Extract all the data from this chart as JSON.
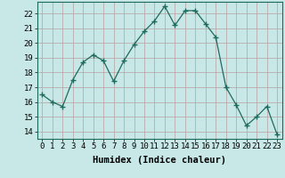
{
  "x": [
    0,
    1,
    2,
    3,
    4,
    5,
    6,
    7,
    8,
    9,
    10,
    11,
    12,
    13,
    14,
    15,
    16,
    17,
    18,
    19,
    20,
    21,
    22,
    23
  ],
  "y": [
    16.5,
    16.0,
    15.7,
    17.5,
    18.7,
    19.2,
    18.8,
    17.4,
    18.8,
    19.9,
    20.8,
    21.5,
    22.5,
    21.2,
    22.2,
    22.2,
    21.3,
    20.4,
    17.0,
    15.8,
    14.4,
    15.0,
    15.7,
    13.8
  ],
  "line_color": "#1e6b5e",
  "marker": "+",
  "marker_size": 4,
  "bg_color": "#c8e8e8",
  "grid_color": "#b8a0a0",
  "xlabel": "Humidex (Indice chaleur)",
  "ylabel_ticks": [
    14,
    15,
    16,
    17,
    18,
    19,
    20,
    21,
    22
  ],
  "ylim": [
    13.5,
    22.8
  ],
  "xlim": [
    -0.5,
    23.5
  ],
  "xticks": [
    0,
    1,
    2,
    3,
    4,
    5,
    6,
    7,
    8,
    9,
    10,
    11,
    12,
    13,
    14,
    15,
    16,
    17,
    18,
    19,
    20,
    21,
    22,
    23
  ],
  "xlabel_fontsize": 7.5,
  "tick_fontsize": 6.5
}
